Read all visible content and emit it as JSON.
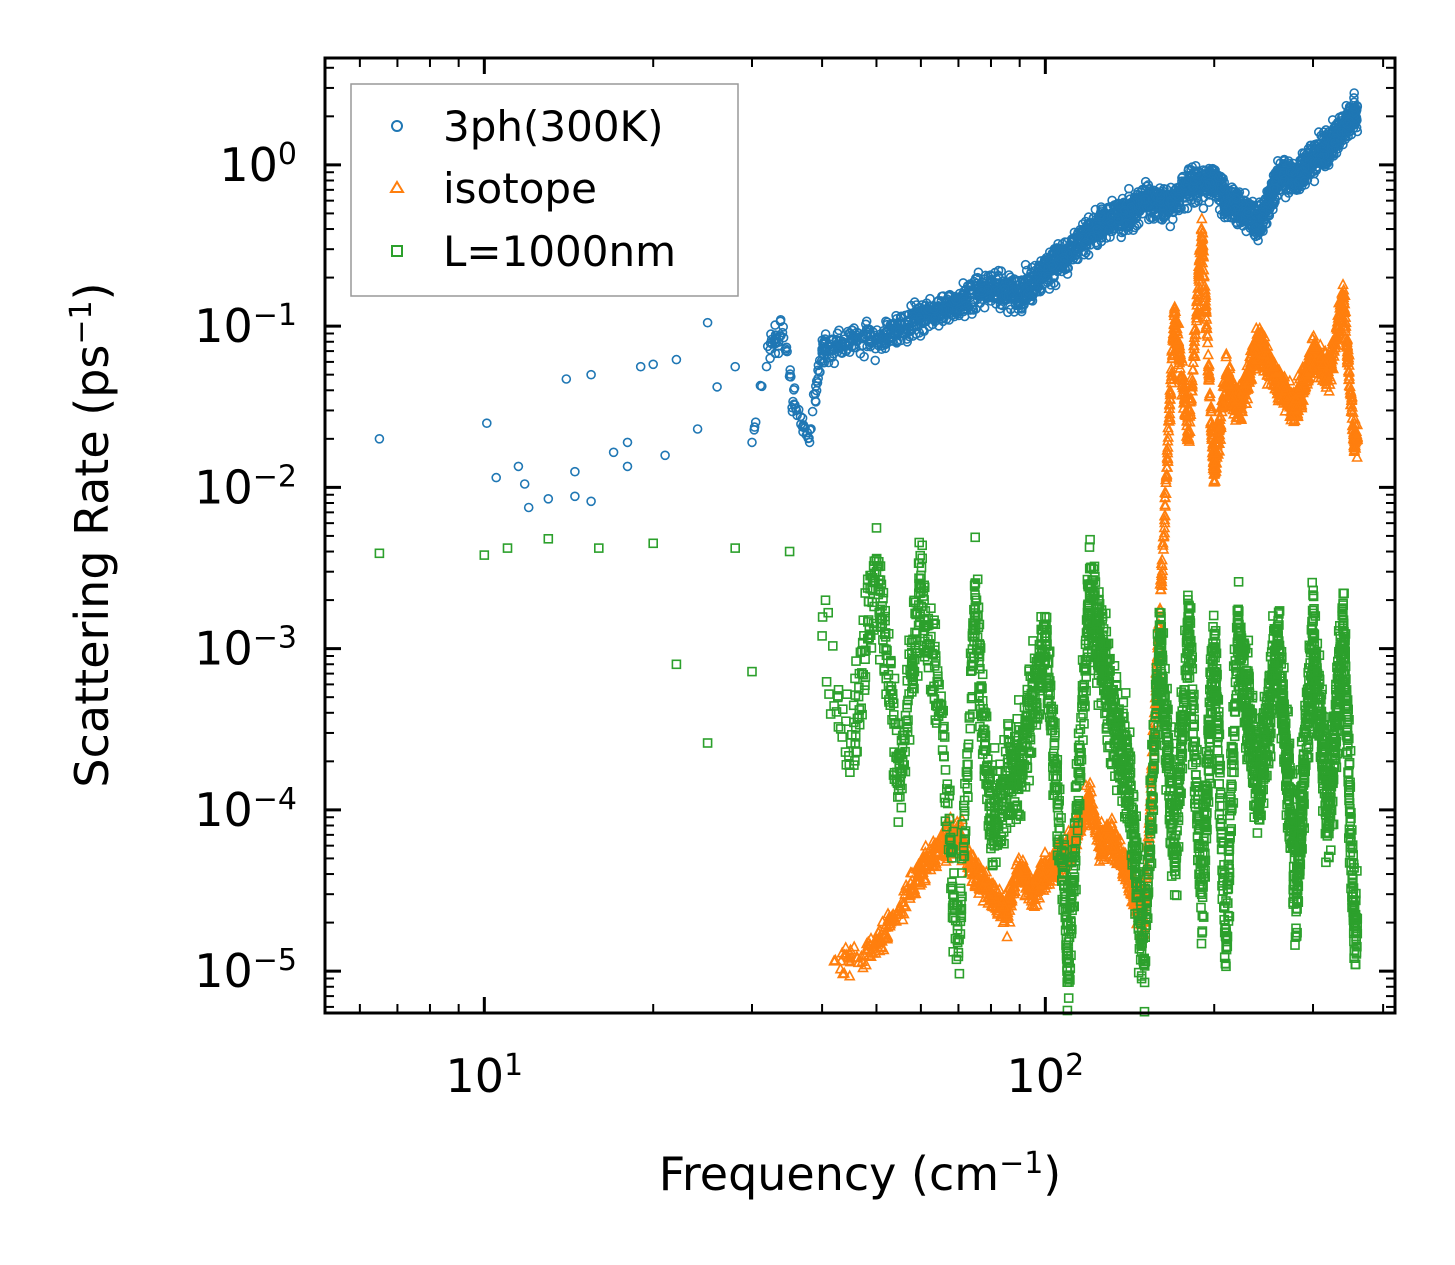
{
  "chart_data": {
    "type": "scatter",
    "title": "",
    "xlabel": "Frequency (cm",
    "xlabel_sup": "−1",
    "xlabel_end": ")",
    "ylabel": "Scattering Rate (ps",
    "ylabel_sup": "−1",
    "ylabel_end": ")",
    "xscale": "log",
    "yscale": "log",
    "xlim": [
      5.2,
      420
    ],
    "ylim": [
      5.5e-06,
      4.6
    ],
    "x_ticks": [
      {
        "value": 10,
        "base": "10",
        "exp": "1"
      },
      {
        "value": 100,
        "base": "10",
        "exp": "2"
      }
    ],
    "y_ticks": [
      {
        "value": 1,
        "base": "10",
        "exp": "0"
      },
      {
        "value": 0.1,
        "base": "10",
        "exp": "−1"
      },
      {
        "value": 0.01,
        "base": "10",
        "exp": "−2"
      },
      {
        "value": 0.001,
        "base": "10",
        "exp": "−3"
      },
      {
        "value": 0.0001,
        "base": "10",
        "exp": "−4"
      },
      {
        "value": 1e-05,
        "base": "10",
        "exp": "−5"
      }
    ],
    "legend_position": "top-left",
    "series": [
      {
        "name": "3ph(300K)",
        "marker": "circle",
        "color": "#1f77b4",
        "sample_points": [
          [
            6.5,
            0.02
          ],
          [
            10.1,
            0.025
          ],
          [
            10.5,
            0.0115
          ],
          [
            11.5,
            0.0135
          ],
          [
            11.8,
            0.0105
          ],
          [
            12,
            0.0075
          ],
          [
            13,
            0.0085
          ],
          [
            14,
            0.047
          ],
          [
            14.5,
            0.0125
          ],
          [
            14.5,
            0.0088
          ],
          [
            15.5,
            0.05
          ],
          [
            15.5,
            0.0082
          ],
          [
            17,
            0.0165
          ],
          [
            18,
            0.019
          ],
          [
            18,
            0.0135
          ],
          [
            19,
            0.056
          ],
          [
            20,
            0.058
          ],
          [
            21,
            0.0158
          ],
          [
            22,
            0.062
          ],
          [
            24,
            0.023
          ],
          [
            25,
            0.105
          ],
          [
            26,
            0.042
          ],
          [
            28,
            0.056
          ],
          [
            30,
            0.019
          ],
          [
            32,
            0.075
          ],
          [
            34,
            0.091
          ],
          [
            36,
            0.03
          ],
          [
            38,
            0.019
          ],
          [
            40,
            0.072
          ],
          [
            45,
            0.083
          ],
          [
            50,
            0.083
          ],
          [
            55,
            0.095
          ],
          [
            60,
            0.12
          ],
          [
            65,
            0.125
          ],
          [
            70,
            0.14
          ],
          [
            80,
            0.175
          ],
          [
            90,
            0.16
          ],
          [
            100,
            0.22
          ],
          [
            110,
            0.28
          ],
          [
            120,
            0.38
          ],
          [
            130,
            0.46
          ],
          [
            140,
            0.5
          ],
          [
            150,
            0.6
          ],
          [
            160,
            0.58
          ],
          [
            170,
            0.6
          ],
          [
            180,
            0.72
          ],
          [
            190,
            0.78
          ],
          [
            200,
            0.8
          ],
          [
            210,
            0.58
          ],
          [
            220,
            0.56
          ],
          [
            240,
            0.42
          ],
          [
            260,
            0.85
          ],
          [
            280,
            0.85
          ],
          [
            300,
            1.1
          ],
          [
            320,
            1.3
          ],
          [
            340,
            1.7
          ],
          [
            355,
            2.1
          ]
        ]
      },
      {
        "name": "isotope",
        "marker": "triangle",
        "color": "#ff7f0e",
        "sample_points": [
          [
            42,
            1.15e-05
          ],
          [
            45,
            1.2e-05
          ],
          [
            50,
            1.5e-05
          ],
          [
            55,
            2.5e-05
          ],
          [
            60,
            4e-05
          ],
          [
            65,
            6e-05
          ],
          [
            70,
            7e-05
          ],
          [
            75,
            4e-05
          ],
          [
            80,
            3e-05
          ],
          [
            85,
            2.2e-05
          ],
          [
            90,
            4.5e-05
          ],
          [
            95,
            3e-05
          ],
          [
            100,
            4e-05
          ],
          [
            110,
            5.5e-05
          ],
          [
            115,
            8e-05
          ],
          [
            120,
            0.00012
          ],
          [
            125,
            6e-05
          ],
          [
            130,
            7e-05
          ],
          [
            140,
            4e-05
          ],
          [
            150,
            2e-05
          ],
          [
            165,
            0.015
          ],
          [
            170,
            0.12
          ],
          [
            180,
            0.02
          ],
          [
            190,
            0.4
          ],
          [
            200,
            0.012
          ],
          [
            210,
            0.05
          ],
          [
            220,
            0.03
          ],
          [
            240,
            0.08
          ],
          [
            260,
            0.045
          ],
          [
            280,
            0.03
          ],
          [
            300,
            0.07
          ],
          [
            320,
            0.05
          ],
          [
            340,
            0.15
          ],
          [
            355,
            0.02
          ]
        ]
      },
      {
        "name": "L=1000nm",
        "marker": "square",
        "color": "#2ca02c",
        "sample_points": [
          [
            6.5,
            0.0039
          ],
          [
            10,
            0.0038
          ],
          [
            11,
            0.0042
          ],
          [
            13,
            0.0048
          ],
          [
            16,
            0.0042
          ],
          [
            20,
            0.0045
          ],
          [
            22,
            0.0008
          ],
          [
            25,
            0.00026
          ],
          [
            28,
            0.0042
          ],
          [
            30,
            0.00072
          ],
          [
            35,
            0.004
          ],
          [
            40,
            0.0012
          ],
          [
            45,
            0.00026
          ],
          [
            50,
            0.003
          ],
          [
            55,
            0.00015
          ],
          [
            60,
            0.0025
          ],
          [
            65,
            0.00045
          ],
          [
            70,
            1.3e-05
          ],
          [
            75,
            0.0018
          ],
          [
            80,
            8e-05
          ],
          [
            90,
            0.0002
          ],
          [
            100,
            0.0012
          ],
          [
            110,
            1.2e-05
          ],
          [
            120,
            0.0024
          ],
          [
            130,
            0.0005
          ],
          [
            140,
            0.00018
          ],
          [
            150,
            1.1e-05
          ],
          [
            160,
            0.0012
          ],
          [
            170,
            5e-05
          ],
          [
            180,
            0.0015
          ],
          [
            190,
            3e-05
          ],
          [
            200,
            0.0012
          ],
          [
            210,
            1.4e-05
          ],
          [
            220,
            0.0015
          ],
          [
            240,
            0.00012
          ],
          [
            260,
            0.0012
          ],
          [
            280,
            3e-05
          ],
          [
            300,
            0.0012
          ],
          [
            320,
            9e-05
          ],
          [
            340,
            0.0015
          ],
          [
            355,
            2e-05
          ]
        ]
      }
    ]
  }
}
